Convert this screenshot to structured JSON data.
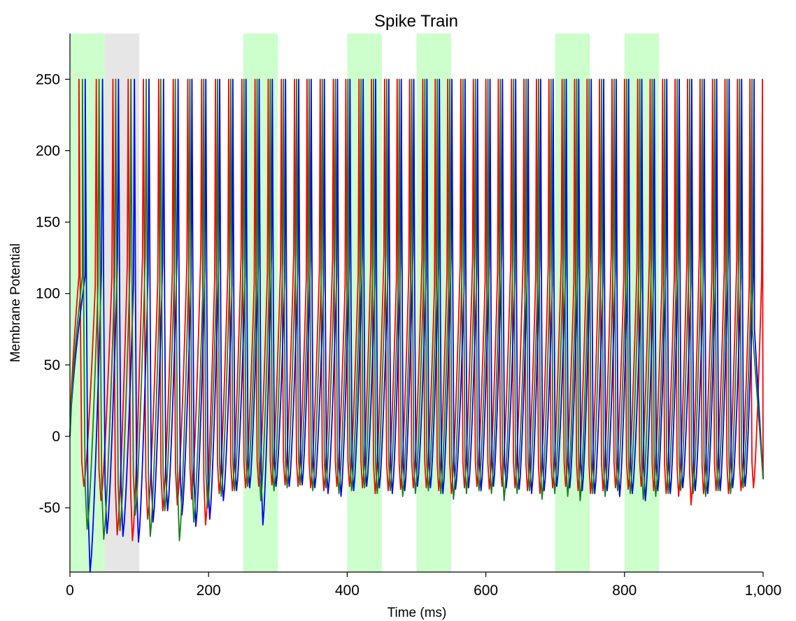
{
  "chart_data": {
    "type": "line",
    "title": "Spike Train",
    "xlabel": "Time (ms)",
    "ylabel": "Membrane Potential",
    "xlim": [
      0,
      1000
    ],
    "ylim": [
      -95,
      282
    ],
    "x_ticks": [
      0,
      200,
      400,
      600,
      800,
      1000
    ],
    "x_tick_labels": [
      "0",
      "200",
      "400",
      "600",
      "800",
      "1,000"
    ],
    "y_ticks": [
      -50,
      0,
      50,
      100,
      150,
      200,
      250
    ],
    "y_tick_labels": [
      "-50",
      "0",
      "50",
      "100",
      "150",
      "200",
      "250"
    ],
    "grid": false,
    "legend": "none",
    "spike_peak": 250,
    "shaded_intervals": [
      {
        "start": 0,
        "end": 50,
        "color": "#ccffcc"
      },
      {
        "start": 50,
        "end": 100,
        "color": "#e6e6e6"
      },
      {
        "start": 250,
        "end": 300,
        "color": "#ccffcc"
      },
      {
        "start": 400,
        "end": 450,
        "color": "#ccffcc"
      },
      {
        "start": 500,
        "end": 550,
        "color": "#ccffcc"
      },
      {
        "start": 700,
        "end": 750,
        "color": "#ccffcc"
      },
      {
        "start": 800,
        "end": 850,
        "color": "#ccffcc"
      }
    ],
    "series": [
      {
        "color": "#ff0000",
        "spike_times": [
          13,
          38,
          62,
          84,
          106,
          128,
          149,
          170,
          190,
          210,
          229,
          248,
          267,
          286,
          305,
          324,
          342,
          361,
          380,
          398,
          417,
          435,
          454,
          472,
          490,
          509,
          527,
          545,
          564,
          582,
          600,
          618,
          637,
          655,
          673,
          691,
          710,
          728,
          746,
          764,
          782,
          800,
          819,
          837,
          855,
          873,
          891,
          909,
          927,
          945,
          963,
          981,
          999
        ],
        "troughs": [
          -35,
          -45,
          -69,
          -73,
          -58,
          -52,
          -48,
          -44,
          -62,
          -40,
          -38,
          -36,
          -35,
          -34,
          -34,
          -35,
          -36,
          -38,
          -35,
          -35,
          -36,
          -40,
          -38,
          -37,
          -36,
          -36,
          -38,
          -40,
          -36,
          -35,
          -37,
          -35,
          -36,
          -38,
          -40,
          -36,
          -35,
          -38,
          -40,
          -38,
          -36,
          -37,
          -35,
          -38,
          -40,
          -42,
          -48,
          -40,
          -38,
          -40,
          -38,
          -36
        ]
      },
      {
        "color": "#0000ff",
        "spike_times": [
          22,
          47,
          70,
          93,
          114,
          135,
          156,
          176,
          196,
          216,
          235,
          254,
          273,
          292,
          311,
          330,
          348,
          367,
          386,
          404,
          423,
          441,
          460,
          478,
          496,
          515,
          533,
          551,
          570,
          588,
          606,
          624,
          643,
          661,
          679,
          697,
          716,
          734,
          752,
          770,
          788,
          806,
          825,
          843,
          861,
          879,
          897,
          915,
          933,
          951,
          969,
          987
        ],
        "troughs": [
          -95,
          -68,
          -70,
          -74,
          -60,
          -52,
          -55,
          -63,
          -58,
          -45,
          -38,
          -36,
          -62,
          -35,
          -35,
          -34,
          -36,
          -40,
          -42,
          -38,
          -35,
          -36,
          -40,
          -38,
          -35,
          -36,
          -40,
          -37,
          -36,
          -38,
          -35,
          -36,
          -37,
          -40,
          -38,
          -35,
          -36,
          -38,
          -40,
          -38,
          -42,
          -40,
          -45,
          -38,
          -40,
          -36,
          -38,
          -40,
          -38,
          -36,
          -35
        ]
      },
      {
        "color": "#1a7f1a",
        "spike_times": [
          18,
          42,
          66,
          88,
          110,
          131,
          152,
          173,
          193,
          213,
          232,
          251,
          270,
          289,
          308,
          327,
          345,
          364,
          383,
          401,
          420,
          438,
          457,
          475,
          493,
          512,
          530,
          548,
          567,
          585,
          603,
          621,
          640,
          658,
          676,
          694,
          713,
          731,
          749,
          767,
          785,
          803,
          822,
          840,
          858,
          876,
          894,
          912,
          930,
          948,
          966,
          984
        ],
        "troughs": [
          -65,
          -72,
          -66,
          -55,
          -70,
          -52,
          -73,
          -60,
          -50,
          -42,
          -38,
          -35,
          -45,
          -38,
          -36,
          -34,
          -38,
          -36,
          -40,
          -38,
          -36,
          -40,
          -38,
          -42,
          -40,
          -38,
          -40,
          -44,
          -40,
          -38,
          -40,
          -45,
          -40,
          -38,
          -44,
          -40,
          -42,
          -45,
          -40,
          -42,
          -38,
          -40,
          -44,
          -42,
          -40,
          -38,
          -40,
          -42,
          -38,
          -40,
          -36
        ]
      }
    ]
  }
}
